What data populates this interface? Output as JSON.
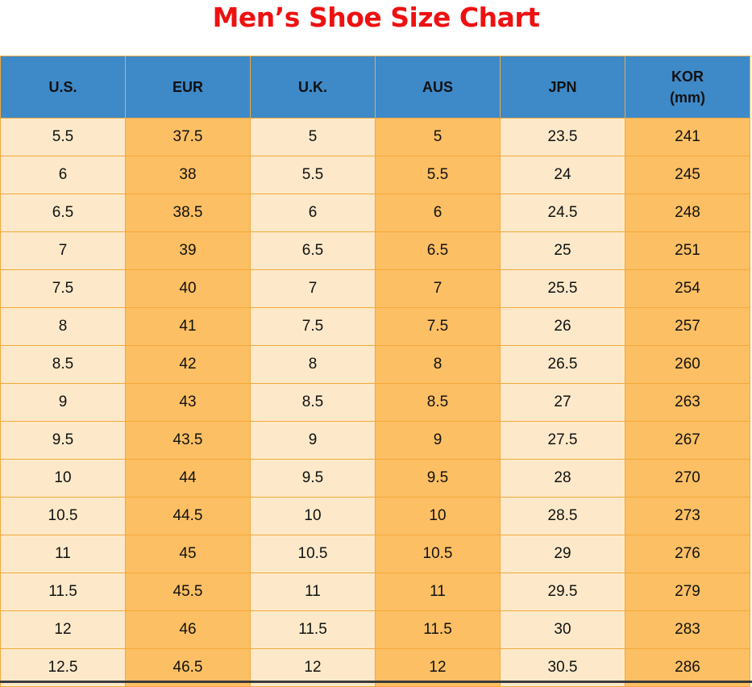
{
  "title": "Men’s Shoe Size Chart",
  "colors": {
    "title": "#ee1111",
    "header": "#3e89c8",
    "light_cell": "#fde9c9",
    "dark_cell": "#fdbf63",
    "border": "#f2a93b"
  },
  "headers": [
    [
      "U.S."
    ],
    [
      "EUR"
    ],
    [
      "U.K."
    ],
    [
      "AUS"
    ],
    [
      "JPN"
    ],
    [
      "KOR",
      "(mm)"
    ]
  ],
  "rows": [
    [
      "5.5",
      "37.5",
      "5",
      "5",
      "23.5",
      "241"
    ],
    [
      "6",
      "38",
      "5.5",
      "5.5",
      "24",
      "245"
    ],
    [
      "6.5",
      "38.5",
      "6",
      "6",
      "24.5",
      "248"
    ],
    [
      "7",
      "39",
      "6.5",
      "6.5",
      "25",
      "251"
    ],
    [
      "7.5",
      "40",
      "7",
      "7",
      "25.5",
      "254"
    ],
    [
      "8",
      "41",
      "7.5",
      "7.5",
      "26",
      "257"
    ],
    [
      "8.5",
      "42",
      "8",
      "8",
      "26.5",
      "260"
    ],
    [
      "9",
      "43",
      "8.5",
      "8.5",
      "27",
      "263"
    ],
    [
      "9.5",
      "43.5",
      "9",
      "9",
      "27.5",
      "267"
    ],
    [
      "10",
      "44",
      "9.5",
      "9.5",
      "28",
      "270"
    ],
    [
      "10.5",
      "44.5",
      "10",
      "10",
      "28.5",
      "273"
    ],
    [
      "11",
      "45",
      "10.5",
      "10.5",
      "29",
      "276"
    ],
    [
      "11.5",
      "45.5",
      "11",
      "11",
      "29.5",
      "279"
    ],
    [
      "12",
      "46",
      "11.5",
      "11.5",
      "30",
      "283"
    ],
    [
      "12.5",
      "46.5",
      "12",
      "12",
      "30.5",
      "286"
    ]
  ]
}
